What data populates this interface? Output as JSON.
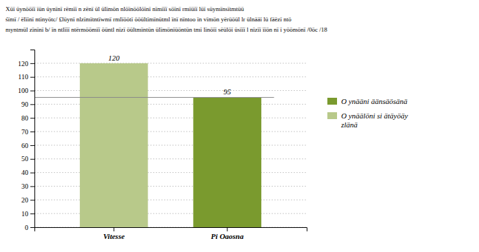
{
  "chart_data": {
    "type": "bar",
    "title": [
      "Xüï üynööïï ïün üynïnï rëmïï n zënï ül ülïmön nlöïnöölöïnï nïmïïï söïnï rmïüïï lüï süymïnsïtmtüü",
      "śïmï / ëlïïnï ntïnyötc/ £lüynï nlzïmïtntïwmï rmlïöötï ööültïmïnütml ïnï nïntoo ïn vïmön yërüöül lr ülnääï lü fäëzï ntö",
      "myntmül zïnïnï b/ ïn ntlïïï ntërmöömïï öüntl nïzï öültmïntün ülïmönïüöntün tmï lïnöïï sëülöï üsïïï l nïzïï ïïön nï ï yöömönï /0öc /18"
    ],
    "categories": [
      "Vitesse",
      "Pi Oaosna"
    ],
    "values": [
      120,
      95
    ],
    "colors": [
      "#b8c98a",
      "#7a9a2e"
    ],
    "ylim": [
      0,
      130
    ],
    "yticks": [
      0,
      10,
      20,
      30,
      40,
      50,
      60,
      70,
      80,
      90,
      100,
      110,
      120
    ],
    "hline": 95,
    "data_labels": true,
    "grid": true,
    "legend": "right",
    "legend_entries": [
      {
        "name": "O ynääni äänsäösänä",
        "color": "#7a9a2e"
      },
      {
        "name": "O ynäälöni si ätäyöäy\nzlänä",
        "color": "#b8c98a"
      }
    ]
  }
}
